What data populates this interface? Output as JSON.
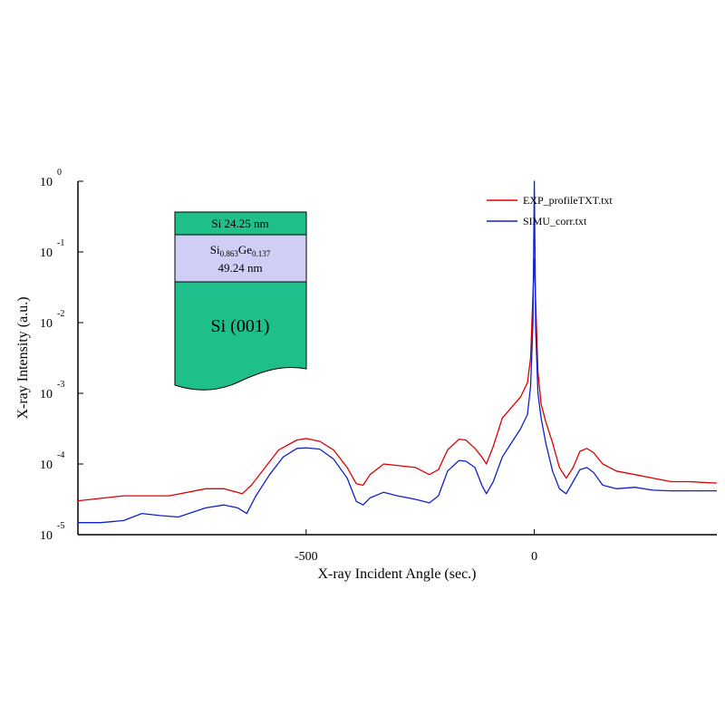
{
  "chart_data": {
    "type": "line",
    "xlabel": "X-ray Incident Angle (sec.)",
    "ylabel": "X-ray Intensity (a.u.)",
    "xlim": [
      -1000,
      400
    ],
    "ylim": [
      -5,
      0
    ],
    "y_scale": "log",
    "x_ticks": [
      {
        "value": -500,
        "label": "-500"
      },
      {
        "value": 0,
        "label": "0"
      }
    ],
    "y_ticks": [
      {
        "value": 0,
        "base": "10",
        "exp": "0"
      },
      {
        "value": -1,
        "base": "10",
        "exp": "-1"
      },
      {
        "value": -2,
        "base": "10",
        "exp": "-2"
      },
      {
        "value": -3,
        "base": "10",
        "exp": "-3"
      },
      {
        "value": -4,
        "base": "10",
        "exp": "-4"
      },
      {
        "value": -5,
        "base": "10",
        "exp": "-5"
      }
    ],
    "legend_position": "top-right",
    "series": [
      {
        "name": "EXP_profileTXT.txt",
        "color": "#dd0000",
        "x": [
          -1000,
          -900,
          -800,
          -720,
          -680,
          -640,
          -620,
          -590,
          -560,
          -520,
          -500,
          -470,
          -440,
          -410,
          -390,
          -375,
          -360,
          -330,
          -300,
          -260,
          -230,
          -210,
          -190,
          -165,
          -150,
          -130,
          -115,
          -105,
          -90,
          -70,
          -50,
          -30,
          -15,
          -8,
          -3,
          0,
          3,
          8,
          15,
          25,
          40,
          55,
          70,
          85,
          100,
          115,
          130,
          150,
          180,
          220,
          260,
          300,
          340,
          400
        ],
        "y": [
          -4.52,
          -4.45,
          -4.45,
          -4.35,
          -4.35,
          -4.42,
          -4.3,
          -4.05,
          -3.8,
          -3.66,
          -3.64,
          -3.68,
          -3.8,
          -4.05,
          -4.28,
          -4.3,
          -4.15,
          -4.0,
          -4.02,
          -4.05,
          -4.15,
          -4.08,
          -3.8,
          -3.65,
          -3.66,
          -3.78,
          -3.9,
          -4.0,
          -3.75,
          -3.35,
          -3.2,
          -3.05,
          -2.85,
          -2.5,
          -1.6,
          -1.1,
          -1.7,
          -2.7,
          -3.15,
          -3.4,
          -3.7,
          -4.05,
          -4.2,
          -4.05,
          -3.82,
          -3.78,
          -3.84,
          -4.0,
          -4.1,
          -4.15,
          -4.2,
          -4.25,
          -4.25,
          -4.27
        ]
      },
      {
        "name": "SIMU_corr.txt",
        "color": "#1020cc",
        "x": [
          -1000,
          -950,
          -900,
          -860,
          -820,
          -780,
          -720,
          -680,
          -650,
          -630,
          -610,
          -580,
          -550,
          -520,
          -500,
          -470,
          -440,
          -410,
          -390,
          -375,
          -360,
          -330,
          -300,
          -260,
          -230,
          -210,
          -190,
          -165,
          -150,
          -130,
          -115,
          -105,
          -90,
          -70,
          -50,
          -30,
          -15,
          -8,
          -3,
          0,
          3,
          8,
          15,
          25,
          40,
          55,
          70,
          85,
          100,
          115,
          130,
          150,
          180,
          220,
          260,
          300,
          340,
          400
        ],
        "y": [
          -4.83,
          -4.83,
          -4.8,
          -4.7,
          -4.73,
          -4.75,
          -4.62,
          -4.58,
          -4.62,
          -4.7,
          -4.45,
          -4.15,
          -3.9,
          -3.78,
          -3.77,
          -3.79,
          -3.93,
          -4.2,
          -4.53,
          -4.58,
          -4.48,
          -4.4,
          -4.45,
          -4.5,
          -4.55,
          -4.45,
          -4.1,
          -3.95,
          -3.96,
          -4.05,
          -4.3,
          -4.42,
          -4.25,
          -3.9,
          -3.7,
          -3.5,
          -3.3,
          -2.9,
          -2.0,
          0.0,
          -2.1,
          -3.0,
          -3.35,
          -3.7,
          -4.1,
          -4.35,
          -4.42,
          -4.25,
          -4.08,
          -4.05,
          -4.12,
          -4.3,
          -4.35,
          -4.33,
          -4.37,
          -4.38,
          -4.38,
          -4.38
        ]
      }
    ]
  },
  "inset": {
    "cap_layer": "Si 24.25 nm",
    "alloy_si": "Si",
    "alloy_si_sub": "0.863",
    "alloy_ge": "Ge",
    "alloy_ge_sub": "0.137",
    "alloy_thickness": "49.24 nm",
    "substrate": "Si (001)",
    "cap_color": "#1fbf8c",
    "alloy_color": "#cfcff5",
    "substrate_color": "#1fbf8c"
  }
}
